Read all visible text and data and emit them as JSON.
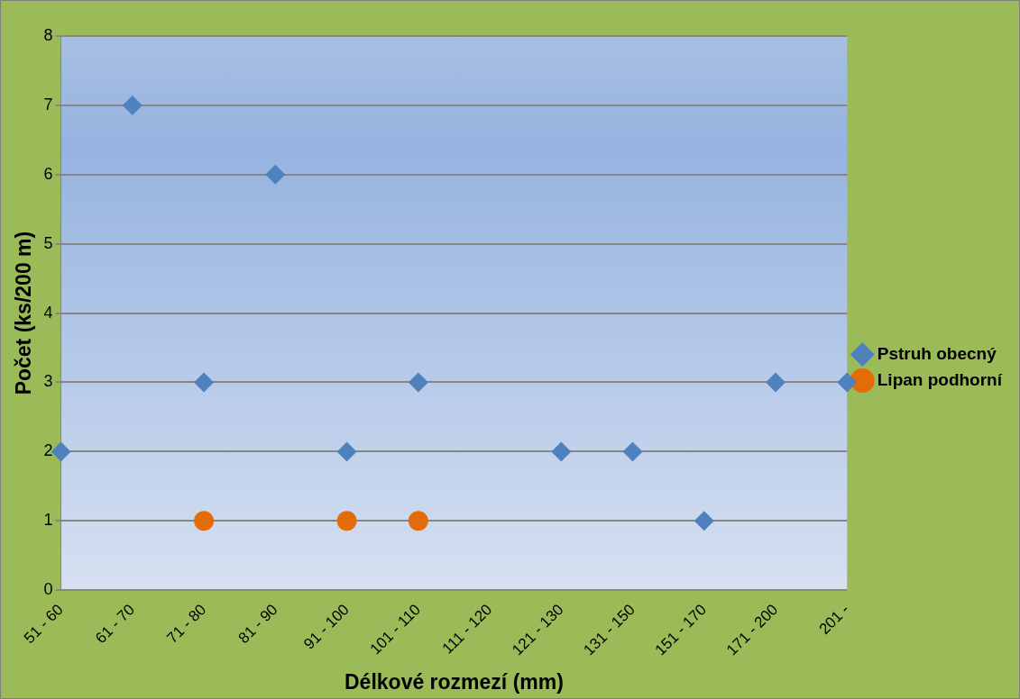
{
  "chart_data": {
    "type": "scatter",
    "xlabel": "Délkové rozmezí (mm)",
    "ylabel": "Počet (ks/200 m)",
    "categories": [
      "51 - 60",
      "61 - 70",
      "71 - 80",
      "81 - 90",
      "91 - 100",
      "101 - 110",
      "111 - 120",
      "121 - 130",
      "131 - 150",
      "151 - 170",
      "171 - 200",
      "201 -"
    ],
    "series": [
      {
        "name": "Pstruh obecný",
        "color": "#4f81bd",
        "marker": "diamond",
        "values": [
          2,
          7,
          3,
          6,
          2,
          3,
          null,
          2,
          2,
          1,
          3,
          3
        ]
      },
      {
        "name": "Lipan podhorní",
        "color": "#e36c09",
        "marker": "circle",
        "values": [
          null,
          null,
          1,
          null,
          1,
          1,
          null,
          null,
          null,
          null,
          null,
          null
        ]
      }
    ],
    "ylim": [
      0,
      8
    ],
    "yticks": [
      0,
      1,
      2,
      3,
      4,
      5,
      6,
      7,
      8
    ],
    "grid": "y",
    "legend": "right"
  }
}
